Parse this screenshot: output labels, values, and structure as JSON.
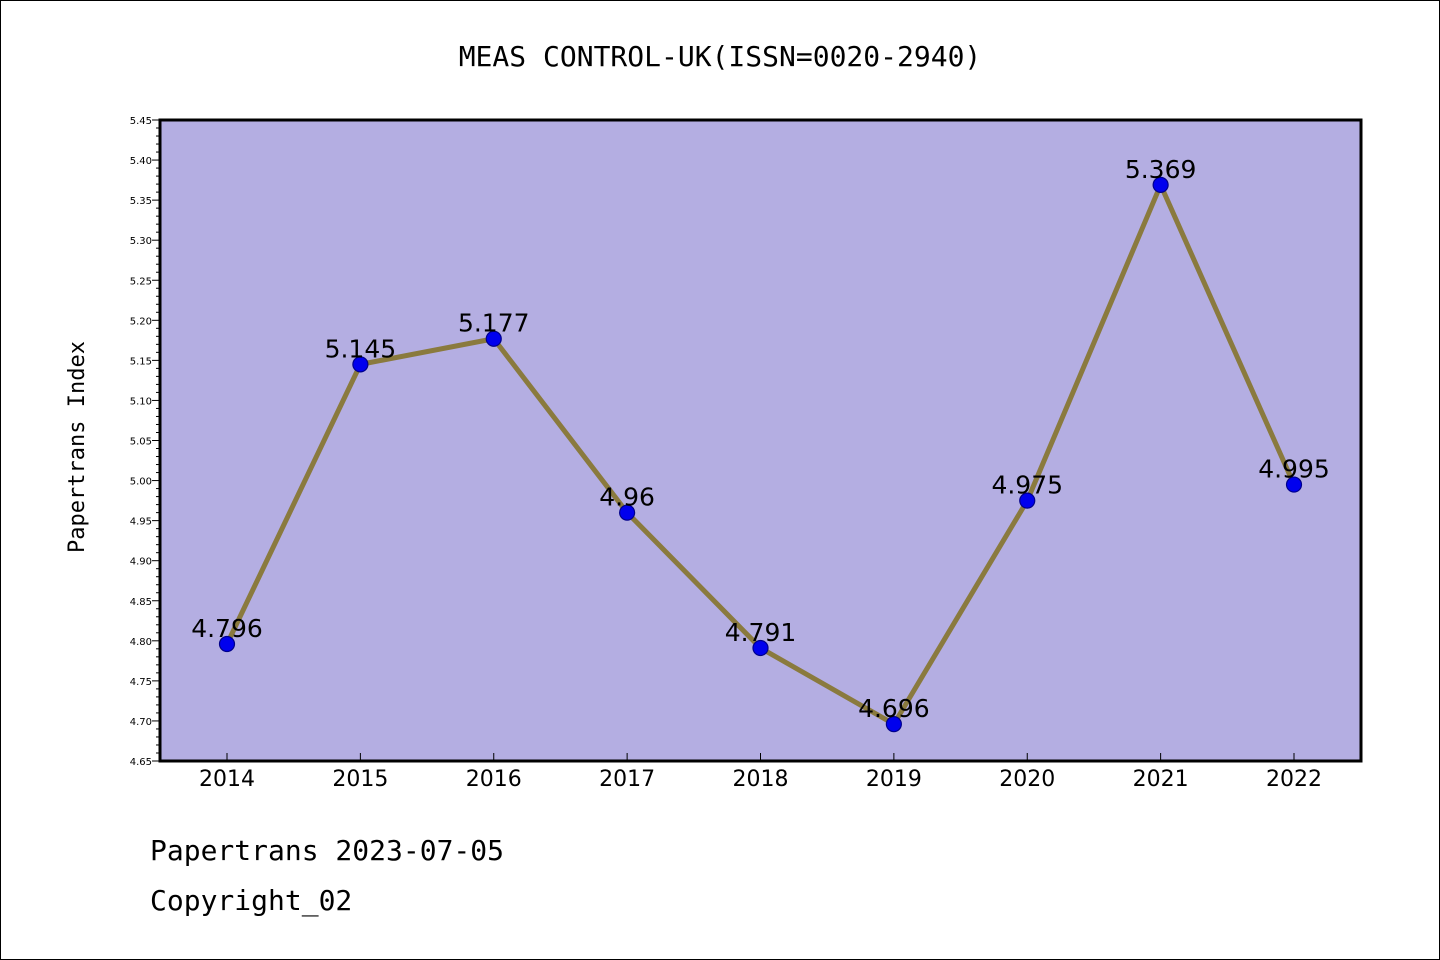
{
  "chart_data": {
    "type": "line",
    "title": "MEAS CONTROL-UK(ISSN=0020-2940)",
    "xlabel": "",
    "ylabel": "Papertrans Index",
    "categories": [
      "2014",
      "2015",
      "2016",
      "2017",
      "2018",
      "2019",
      "2020",
      "2021",
      "2022"
    ],
    "series": [
      {
        "values": [
          4.796,
          5.145,
          5.177,
          4.96,
          4.791,
          4.696,
          4.975,
          5.369,
          4.995
        ],
        "data_labels": [
          "4.796",
          "5.145",
          "5.177",
          "4.96",
          "4.791",
          "4.696",
          "4.975",
          "5.369",
          "4.995"
        ]
      }
    ],
    "ylim": [
      4.65,
      5.45
    ],
    "yticks": [
      "4.65",
      "4.70",
      "4.75",
      "4.80",
      "4.85",
      "4.90",
      "4.95",
      "5.00",
      "5.05",
      "5.10",
      "5.15",
      "5.20",
      "5.25",
      "5.30",
      "5.35",
      "5.40",
      "5.45"
    ],
    "grid": false,
    "legend": "none",
    "colors": {
      "plot_background": "#b4aee2",
      "line": "#8a7a3e",
      "marker": "#0000ee",
      "marker_edge": "#00008b"
    }
  },
  "footer": {
    "line1": "Papertrans 2023-07-05",
    "line2": "Copyright_02"
  }
}
